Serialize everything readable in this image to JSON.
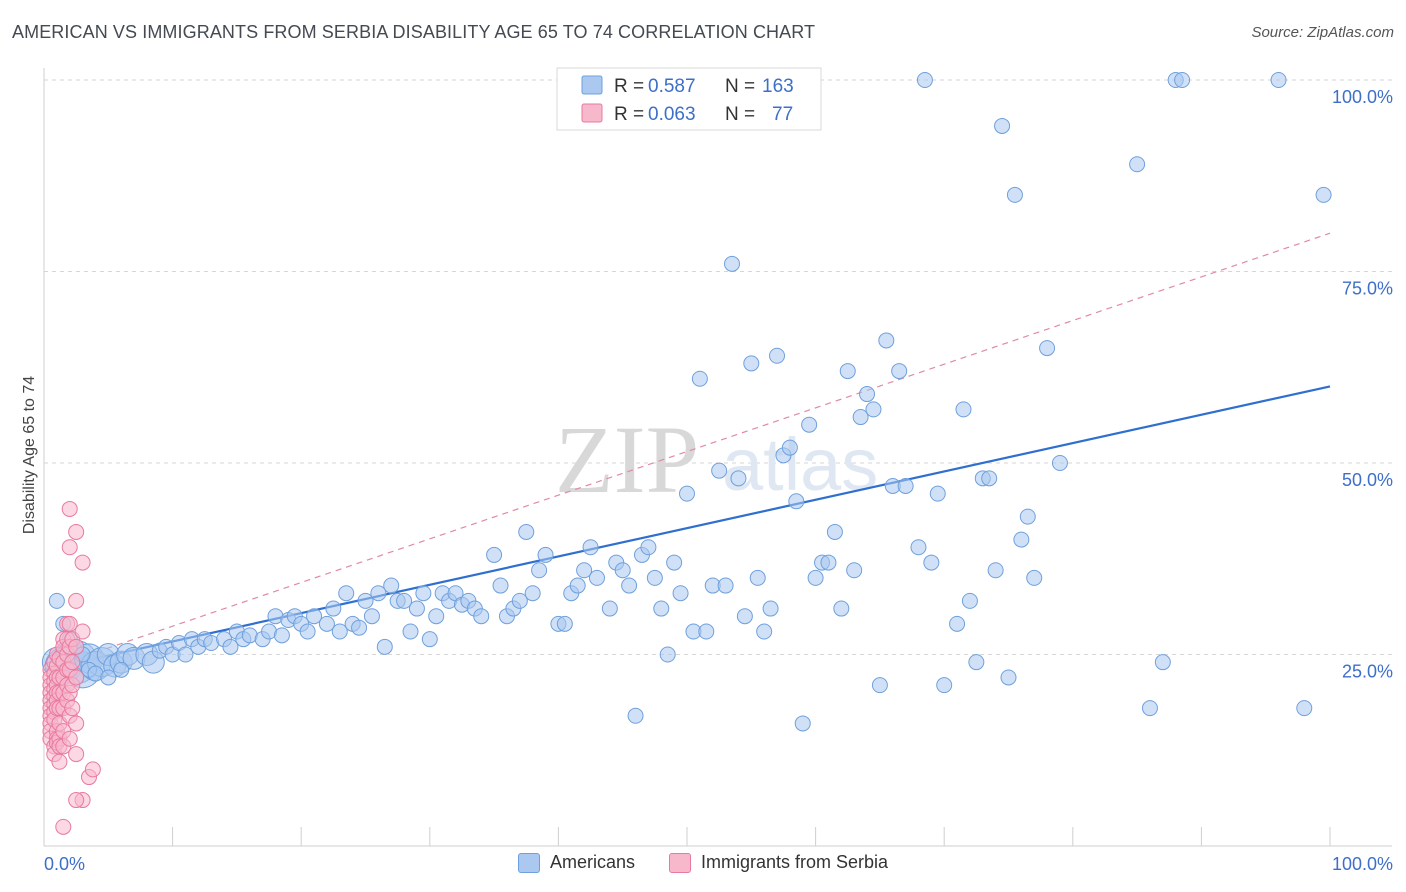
{
  "title": "AMERICAN VS IMMIGRANTS FROM SERBIA DISABILITY AGE 65 TO 74 CORRELATION CHART",
  "source": "Source: ZipAtlas.com",
  "watermark": {
    "zip": "ZIP",
    "atlas": "atlas"
  },
  "legend_top": [
    {
      "r_label": "R =",
      "r_value": "0.587",
      "n_label": "N =",
      "n_value": "163"
    },
    {
      "r_label": "R =",
      "r_value": "0.063",
      "n_label": "N =",
      "n_value": "77"
    }
  ],
  "legend_bottom": [
    {
      "label": "Americans"
    },
    {
      "label": "Immigrants from Serbia"
    }
  ],
  "colors": {
    "blue_fill": "#aac8f0",
    "blue_stroke": "#6fa0dc",
    "blue_line": "#2f6fcf",
    "pink_fill": "#f7b8cc",
    "pink_stroke": "#e87aa0",
    "pink_line": "#e08aa5",
    "value_text": "#3d6fc8"
  },
  "chart_data": {
    "type": "scatter",
    "title": "AMERICAN VS IMMIGRANTS FROM SERBIA DISABILITY AGE 65 TO 74 CORRELATION CHART",
    "xlabel": "",
    "ylabel": "Disability Age 65 to 74",
    "xlim": [
      0,
      100
    ],
    "ylim": [
      0,
      100
    ],
    "x_tick_labels": [
      "0.0%",
      "100.0%"
    ],
    "y_tick_labels": [
      "25.0%",
      "50.0%",
      "75.0%",
      "100.0%"
    ],
    "y_ticks": [
      25,
      50,
      75,
      100
    ],
    "grid": "horizontal dashed",
    "legend_position": "top-center",
    "series": [
      {
        "name": "Americans",
        "trend": [
          [
            0,
            23
          ],
          [
            100,
            60
          ]
        ],
        "points": [
          [
            1,
            24,
            3
          ],
          [
            1.5,
            23.5,
            4
          ],
          [
            2,
            25,
            3
          ],
          [
            2.5,
            24,
            5
          ],
          [
            3,
            23,
            4
          ],
          [
            3.5,
            24.5,
            3
          ],
          [
            4,
            23.5,
            3
          ],
          [
            4.5,
            24,
            3
          ],
          [
            5,
            25,
            2
          ],
          [
            5.5,
            23.5,
            2
          ],
          [
            6,
            24,
            2
          ],
          [
            6.5,
            25,
            2
          ],
          [
            7,
            24.5,
            2
          ],
          [
            8,
            25,
            2
          ],
          [
            8.5,
            24,
            2
          ],
          [
            9,
            25.5,
            1
          ],
          [
            9.5,
            26,
            1
          ],
          [
            10,
            25,
            1
          ],
          [
            10.5,
            26.5,
            1
          ],
          [
            11,
            25,
            1
          ],
          [
            11.5,
            27,
            1
          ],
          [
            12,
            26,
            1
          ],
          [
            12.5,
            27,
            1
          ],
          [
            13,
            26.5,
            1
          ],
          [
            14,
            27,
            1
          ],
          [
            14.5,
            26,
            1
          ],
          [
            15,
            28,
            1
          ],
          [
            15.5,
            27,
            1
          ],
          [
            16,
            27.5,
            1
          ],
          [
            17,
            27,
            1
          ],
          [
            17.5,
            28,
            1
          ],
          [
            18,
            30,
            1
          ],
          [
            18.5,
            27.5,
            1
          ],
          [
            19,
            29.5,
            1
          ],
          [
            19.5,
            30,
            1
          ],
          [
            20,
            29,
            1
          ],
          [
            20.5,
            28,
            1
          ],
          [
            21,
            30,
            1
          ],
          [
            22,
            29,
            1
          ],
          [
            22.5,
            31,
            1
          ],
          [
            23,
            28,
            1
          ],
          [
            23.5,
            33,
            1
          ],
          [
            24,
            29,
            1
          ],
          [
            24.5,
            28.5,
            1
          ],
          [
            25,
            32,
            1
          ],
          [
            25.5,
            30,
            1
          ],
          [
            26,
            33,
            1
          ],
          [
            26.5,
            26,
            1
          ],
          [
            27,
            34,
            1
          ],
          [
            27.5,
            32,
            1
          ],
          [
            28,
            32,
            1
          ],
          [
            28.5,
            28,
            1
          ],
          [
            29,
            31,
            1
          ],
          [
            29.5,
            33,
            1
          ],
          [
            30,
            27,
            1
          ],
          [
            30.5,
            30,
            1
          ],
          [
            31,
            33,
            1
          ],
          [
            31.5,
            32,
            1
          ],
          [
            32,
            33,
            1
          ],
          [
            32.5,
            31.5,
            1
          ],
          [
            33,
            32,
            1
          ],
          [
            33.5,
            31,
            1
          ],
          [
            34,
            30,
            1
          ],
          [
            35,
            38,
            1
          ],
          [
            35.5,
            34,
            1
          ],
          [
            36,
            30,
            1
          ],
          [
            36.5,
            31,
            1
          ],
          [
            37,
            32,
            1
          ],
          [
            37.5,
            41,
            1
          ],
          [
            38,
            33,
            1
          ],
          [
            38.5,
            36,
            1
          ],
          [
            39,
            38,
            1
          ],
          [
            40,
            29,
            1
          ],
          [
            40.5,
            29,
            1
          ],
          [
            41,
            33,
            1
          ],
          [
            41.5,
            34,
            1
          ],
          [
            42,
            36,
            1
          ],
          [
            42.5,
            39,
            1
          ],
          [
            43,
            35,
            1
          ],
          [
            44,
            31,
            1
          ],
          [
            44.5,
            37,
            1
          ],
          [
            45,
            36,
            1
          ],
          [
            45.5,
            34,
            1
          ],
          [
            46,
            17,
            1
          ],
          [
            46.5,
            38,
            1
          ],
          [
            47,
            39,
            1
          ],
          [
            47.5,
            35,
            1
          ],
          [
            48,
            31,
            1
          ],
          [
            48.5,
            25,
            1
          ],
          [
            49,
            37,
            1
          ],
          [
            49.5,
            33,
            1
          ],
          [
            50,
            46,
            1
          ],
          [
            50.5,
            28,
            1
          ],
          [
            51,
            61,
            1
          ],
          [
            51.5,
            28,
            1
          ],
          [
            52,
            34,
            1
          ],
          [
            52.5,
            49,
            1
          ],
          [
            53,
            34,
            1
          ],
          [
            53.5,
            76,
            1
          ],
          [
            54,
            48,
            1
          ],
          [
            54.5,
            30,
            1
          ],
          [
            55,
            63,
            1
          ],
          [
            55.5,
            35,
            1
          ],
          [
            56,
            28,
            1
          ],
          [
            56.5,
            31,
            1
          ],
          [
            57,
            64,
            1
          ],
          [
            57.5,
            51,
            1
          ],
          [
            58,
            52,
            1
          ],
          [
            58.5,
            45,
            1
          ],
          [
            59,
            16,
            1
          ],
          [
            59.5,
            55,
            1
          ],
          [
            60,
            35,
            1
          ],
          [
            60.5,
            37,
            1
          ],
          [
            61,
            37,
            1
          ],
          [
            61.5,
            41,
            1
          ],
          [
            62,
            31,
            1
          ],
          [
            62.5,
            62,
            1
          ],
          [
            63,
            36,
            1
          ],
          [
            63.5,
            56,
            1
          ],
          [
            64,
            59,
            1
          ],
          [
            64.5,
            57,
            1
          ],
          [
            65,
            21,
            1
          ],
          [
            65.5,
            66,
            1
          ],
          [
            66,
            47,
            1
          ],
          [
            66.5,
            62,
            1
          ],
          [
            67,
            47,
            1
          ],
          [
            68,
            39,
            1
          ],
          [
            68.5,
            100,
            1
          ],
          [
            69,
            37,
            1
          ],
          [
            69.5,
            46,
            1
          ],
          [
            70,
            21,
            1
          ],
          [
            71,
            29,
            1
          ],
          [
            71.5,
            57,
            1
          ],
          [
            72,
            32,
            1
          ],
          [
            72.5,
            24,
            1
          ],
          [
            73,
            48,
            1
          ],
          [
            73.5,
            48,
            1
          ],
          [
            74,
            36,
            1
          ],
          [
            74.5,
            94,
            1
          ],
          [
            75,
            22,
            1
          ],
          [
            75.5,
            85,
            1
          ],
          [
            76,
            40,
            1
          ],
          [
            76.5,
            43,
            1
          ],
          [
            77,
            35,
            1
          ],
          [
            78,
            65,
            1
          ],
          [
            79,
            50,
            1
          ],
          [
            85,
            89,
            1
          ],
          [
            86,
            18,
            1
          ],
          [
            87,
            24,
            1
          ],
          [
            88,
            100,
            1
          ],
          [
            88.5,
            100,
            1
          ],
          [
            96,
            100,
            1
          ],
          [
            98,
            18,
            1
          ],
          [
            99.5,
            85,
            1
          ],
          [
            1,
            32,
            1
          ],
          [
            1.5,
            29,
            1
          ],
          [
            2,
            27,
            1
          ],
          [
            2.5,
            26,
            1
          ],
          [
            3,
            25,
            1
          ],
          [
            3.5,
            23,
            1
          ],
          [
            4,
            22.5,
            1
          ],
          [
            5,
            22,
            1
          ],
          [
            6,
            23,
            1
          ]
        ]
      },
      {
        "name": "Immigrants from Serbia",
        "trend": [
          [
            0,
            23
          ],
          [
            100,
            80
          ]
        ],
        "points": [
          [
            0.5,
            23
          ],
          [
            0.5,
            22
          ],
          [
            0.5,
            21
          ],
          [
            0.5,
            20
          ],
          [
            0.5,
            19
          ],
          [
            0.5,
            18
          ],
          [
            0.5,
            17
          ],
          [
            0.5,
            16
          ],
          [
            0.5,
            15
          ],
          [
            0.5,
            14
          ],
          [
            0.8,
            24
          ],
          [
            0.8,
            22.5
          ],
          [
            0.8,
            21.5
          ],
          [
            0.8,
            20.5
          ],
          [
            0.8,
            19.5
          ],
          [
            0.8,
            18.5
          ],
          [
            0.8,
            17.5
          ],
          [
            0.8,
            16.5
          ],
          [
            0.8,
            13
          ],
          [
            0.8,
            12
          ],
          [
            1,
            25
          ],
          [
            1,
            23.5
          ],
          [
            1,
            22
          ],
          [
            1,
            21
          ],
          [
            1,
            20
          ],
          [
            1,
            19
          ],
          [
            1,
            18
          ],
          [
            1,
            15
          ],
          [
            1,
            14
          ],
          [
            1,
            13.5
          ],
          [
            1.2,
            24.5
          ],
          [
            1.2,
            22
          ],
          [
            1.2,
            20
          ],
          [
            1.2,
            18
          ],
          [
            1.2,
            16
          ],
          [
            1.2,
            14
          ],
          [
            1.2,
            13
          ],
          [
            1.2,
            11
          ],
          [
            1.5,
            27
          ],
          [
            1.5,
            26
          ],
          [
            1.5,
            24
          ],
          [
            1.5,
            22
          ],
          [
            1.5,
            20
          ],
          [
            1.5,
            18
          ],
          [
            1.5,
            15
          ],
          [
            1.5,
            13
          ],
          [
            1.8,
            29
          ],
          [
            1.8,
            27
          ],
          [
            1.8,
            25
          ],
          [
            1.8,
            23
          ],
          [
            1.8,
            21
          ],
          [
            1.8,
            19
          ],
          [
            2,
            44
          ],
          [
            2,
            39
          ],
          [
            2,
            29
          ],
          [
            2,
            26
          ],
          [
            2,
            23
          ],
          [
            2,
            20
          ],
          [
            2,
            17
          ],
          [
            2,
            14
          ],
          [
            2.2,
            27
          ],
          [
            2.2,
            24
          ],
          [
            2.2,
            21
          ],
          [
            2.2,
            18
          ],
          [
            2.5,
            41
          ],
          [
            2.5,
            32
          ],
          [
            2.5,
            26
          ],
          [
            2.5,
            22
          ],
          [
            2.5,
            16
          ],
          [
            2.5,
            12
          ],
          [
            3,
            37
          ],
          [
            3,
            28
          ],
          [
            3,
            6
          ],
          [
            3.5,
            9
          ],
          [
            3.8,
            10
          ],
          [
            2.5,
            6
          ],
          [
            1.5,
            2.5
          ]
        ]
      }
    ]
  }
}
